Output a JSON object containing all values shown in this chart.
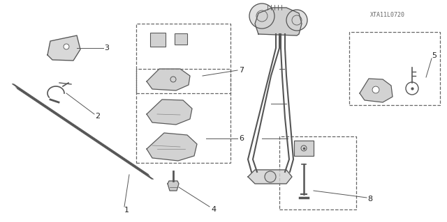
{
  "bg_color": "#ffffff",
  "line_color": "#555555",
  "watermark": "XTA11L0720",
  "fig_w": 6.4,
  "fig_h": 3.19,
  "dpi": 100
}
